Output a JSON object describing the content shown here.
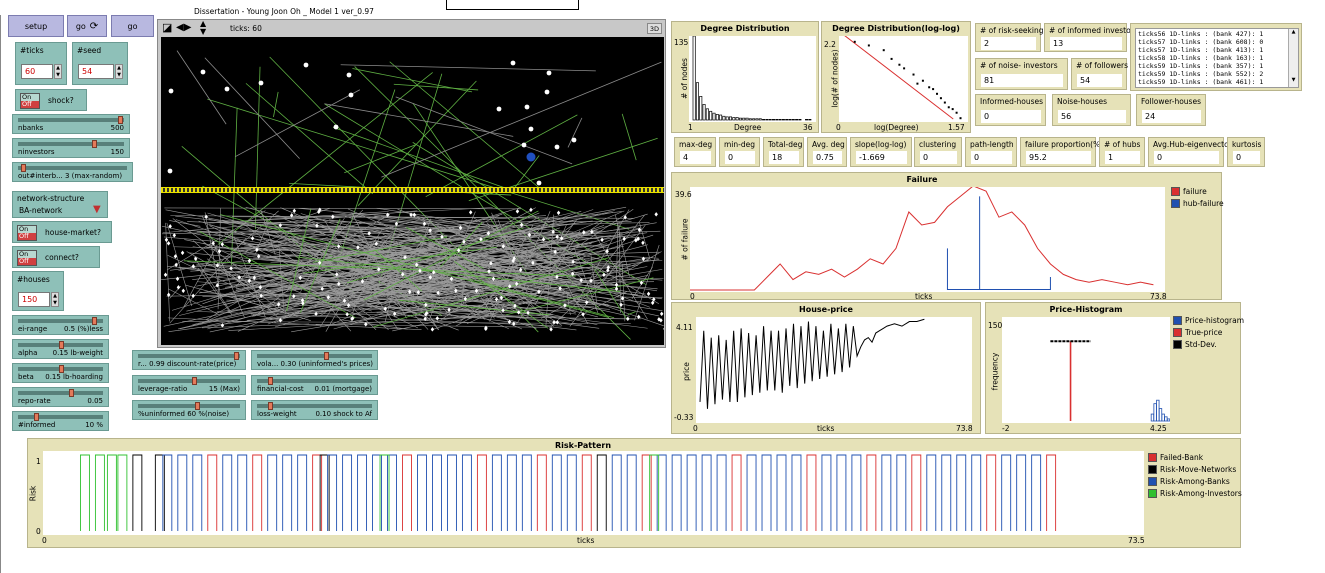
{
  "window_title": "Dissertation - Young Joon Oh _  Model 1 ver_0.97",
  "buttons": {
    "setup": "setup",
    "go_once": "go",
    "go_forever": "go"
  },
  "inputs": {
    "ticks": {
      "label": "#ticks",
      "value": "60"
    },
    "seed": {
      "label": "#seed",
      "value": "54"
    },
    "houses": {
      "label": "#houses",
      "value": "150"
    }
  },
  "switches": {
    "shock": {
      "label": "shock?",
      "on": "On",
      "off": "Off"
    },
    "house_market": {
      "label": "house-market?",
      "on": "On",
      "off": "Off"
    },
    "connect": {
      "label": "connect?",
      "on": "On",
      "off": "Off"
    }
  },
  "chooser": {
    "label": "network-structure",
    "value": "BA-network"
  },
  "sliders": [
    {
      "id": "nbanks",
      "name": "nbanks",
      "value": "500",
      "fraction": 0.97
    },
    {
      "id": "ninvestors",
      "name": "ninvestors",
      "value": "150",
      "fraction": 0.72
    },
    {
      "id": "outinterb",
      "name": "out#interb... 3 (max-random)",
      "value": "",
      "fraction": 0.03
    },
    {
      "id": "ei_range",
      "name": "ei-range",
      "value": "0.5 (%)less",
      "fraction": 0.9
    },
    {
      "id": "alpha",
      "name": "alpha",
      "value": "0.15 lb-weight",
      "fraction": 0.5
    },
    {
      "id": "beta",
      "name": "beta",
      "value": "0.15 lb-hoarding",
      "fraction": 0.5
    },
    {
      "id": "repo_rate",
      "name": "repo-rate",
      "value": "0.05",
      "fraction": 0.62
    },
    {
      "id": "informed",
      "name": "#informed",
      "value": "10 %",
      "fraction": 0.2
    },
    {
      "id": "discount",
      "name": "r... 0.99 discount-rate(price)",
      "value": "",
      "fraction": 0.97
    },
    {
      "id": "volatility",
      "name": "vola... 0.30 (uninformed's prices)",
      "value": "",
      "fraction": 0.6
    },
    {
      "id": "leverage",
      "name": "leverage-ratio",
      "value": "15 (Max)",
      "fraction": 0.55
    },
    {
      "id": "fincost",
      "name": "financial-cost",
      "value": "0.01 (mortgage)",
      "fraction": 0.1
    },
    {
      "id": "uninformed",
      "name": "%uninformed 60 %(noise)",
      "value": "",
      "fraction": 0.58
    },
    {
      "id": "lossweight",
      "name": "loss-weight",
      "value": "0.10 shock to Af",
      "fraction": 0.1
    }
  ],
  "view": {
    "ticks_label": "ticks: 60",
    "btn_3d": "3D"
  },
  "monitors": {
    "risk_seeking": {
      "label": "# of risk-seeking",
      "value": "2"
    },
    "informed_investors": {
      "label": "# of informed investo",
      "value": "13"
    },
    "noise_investors": {
      "label": "# of noise- investors",
      "value": "81"
    },
    "followers": {
      "label": "# of followers",
      "value": "54"
    },
    "informed_houses": {
      "label": "Informed-houses",
      "value": "0"
    },
    "noise_houses": {
      "label": "Noise-houses",
      "value": "56"
    },
    "follower_houses": {
      "label": "Follower-houses",
      "value": "24"
    },
    "max_deg": {
      "label": "max-deg",
      "value": "4"
    },
    "min_deg": {
      "label": "min-deg",
      "value": "0"
    },
    "total_deg": {
      "label": "Total-deg",
      "value": "18"
    },
    "avg_deg": {
      "label": "Avg. deg",
      "value": "0.75"
    },
    "slope": {
      "label": "slope(log-log)",
      "value": "-1.669"
    },
    "clustering": {
      "label": "clustering",
      "value": "0"
    },
    "path_length": {
      "label": "path-length",
      "value": "0"
    },
    "failure_prop": {
      "label": "failure proportion(%",
      "value": "95.2"
    },
    "hubs": {
      "label": "# of hubs",
      "value": "1"
    },
    "hub_eigen": {
      "label": "Avg.Hub-eigenvector",
      "value": "0"
    },
    "kurtosis": {
      "label": "kurtosis",
      "value": "0"
    }
  },
  "output_lines": [
    "ticks56 1D-links : (bank 427): 1",
    "ticks57 1D-links : (bank 608): 0",
    "ticks57 1D-links : (bank 413): 1",
    "ticks58 1D-links : (bank 163): 1",
    "ticks59 1D-links : (bank 357): 1",
    "ticks59 1D-links : (bank 552): 2",
    "ticks59 1D-links : (bank 461): 1"
  ],
  "colors": {
    "red": "#d93030",
    "blue": "#2050b0",
    "black": "#000000",
    "green": "#30c030",
    "gray": "#999999"
  },
  "chart_data": [
    {
      "id": "degree",
      "type": "bar",
      "title": "Degree Distribution",
      "xlabel": "Degree",
      "ylabel": "# of nodes",
      "xlim": [
        1,
        36
      ],
      "ylim": [
        0,
        135
      ],
      "x_ticks": [
        "1",
        "36"
      ],
      "y_ticks": [
        "135"
      ],
      "categories": [
        1,
        2,
        3,
        4,
        5,
        6,
        7,
        8,
        9,
        10,
        11,
        12,
        13,
        14,
        15,
        16,
        17,
        18,
        19,
        20,
        21,
        22,
        23,
        24,
        25,
        26,
        27,
        28,
        29,
        30,
        31,
        32,
        33,
        34,
        35,
        36
      ],
      "values": [
        135,
        60,
        38,
        25,
        18,
        14,
        11,
        9,
        8,
        6,
        5,
        5,
        4,
        4,
        3,
        3,
        3,
        2,
        2,
        2,
        2,
        1,
        1,
        1,
        1,
        1,
        1,
        1,
        1,
        1,
        1,
        1,
        1,
        0,
        1,
        1
      ]
    },
    {
      "id": "loglog",
      "type": "scatter",
      "title": "Degree Distribution(log-log)",
      "xlabel": "log(Degree)",
      "ylabel": "log(# of nodes)",
      "xlim": [
        0,
        1.57
      ],
      "ylim": [
        0,
        2.2
      ],
      "x_ticks": [
        "0",
        "1.57"
      ],
      "y_ticks": [
        "2.2"
      ],
      "points": [
        [
          0.15,
          2.15
        ],
        [
          0.33,
          2.05
        ],
        [
          0.52,
          1.92
        ],
        [
          0.62,
          1.68
        ],
        [
          0.72,
          1.52
        ],
        [
          0.78,
          1.42
        ],
        [
          0.9,
          1.25
        ],
        [
          0.95,
          1.0
        ],
        [
          1.02,
          1.08
        ],
        [
          1.1,
          0.9
        ],
        [
          1.15,
          0.85
        ],
        [
          1.2,
          0.72
        ],
        [
          1.25,
          0.6
        ],
        [
          1.3,
          0.48
        ],
        [
          1.35,
          0.35
        ],
        [
          1.4,
          0.3
        ],
        [
          1.45,
          0.2
        ],
        [
          1.5,
          0.05
        ]
      ],
      "fit_line": [
        [
          0.0,
          2.35
        ],
        [
          1.42,
          0.0
        ]
      ]
    },
    {
      "id": "failure",
      "type": "line",
      "title": "Failure",
      "xlabel": "ticks",
      "ylabel": "# of failure",
      "xlim": [
        0,
        73.8
      ],
      "ylim": [
        0,
        39.6
      ],
      "x_ticks": [
        "0",
        "73.8"
      ],
      "y_ticks": [
        "39.6"
      ],
      "series": [
        {
          "name": "failure",
          "x": [
            0,
            4,
            8,
            10,
            12,
            14,
            16,
            18,
            20,
            22,
            24,
            26,
            28,
            30,
            32,
            34,
            36,
            38,
            40,
            42,
            44,
            46,
            48,
            50,
            52,
            54,
            56,
            58,
            60,
            62,
            64,
            66,
            68,
            70,
            72
          ],
          "values": [
            0,
            0,
            0,
            0,
            5,
            10,
            4,
            7,
            6,
            8,
            5,
            8,
            12,
            10,
            16,
            30,
            25,
            26,
            32,
            36,
            40,
            38,
            28,
            30,
            25,
            16,
            10,
            6,
            4,
            3,
            4,
            3,
            2,
            3,
            2
          ]
        },
        {
          "name": "hub-failure",
          "x": [
            40,
            45,
            56
          ],
          "values": [
            16,
            36,
            5
          ]
        }
      ]
    },
    {
      "id": "house_price",
      "type": "line",
      "title": "House-price",
      "xlabel": "ticks",
      "ylabel": "price",
      "xlim": [
        0,
        73.8
      ],
      "ylim": [
        -0.33,
        4.11
      ],
      "x_ticks": [
        "0",
        "73.8"
      ],
      "y_ticks": [
        "4.11",
        "-0.33"
      ],
      "series": [
        {
          "name": "price",
          "x": [
            0,
            1,
            2,
            3,
            4,
            5,
            6,
            7,
            8,
            9,
            10,
            11,
            12,
            13,
            14,
            15,
            16,
            17,
            18,
            19,
            20,
            21,
            22,
            23,
            24,
            25,
            26,
            27,
            28,
            29,
            30,
            31,
            32,
            33,
            34,
            35,
            36,
            37,
            38,
            39,
            40,
            41,
            42,
            43,
            44,
            45,
            46,
            47,
            48,
            49,
            50,
            52,
            54,
            56,
            58,
            60
          ],
          "values": [
            0.5,
            3.6,
            0.2,
            3.3,
            0.4,
            3.4,
            0.6,
            3.2,
            0.5,
            3.6,
            0.5,
            3.7,
            0.7,
            3.5,
            0.8,
            3.4,
            0.9,
            3.8,
            1.0,
            3.6,
            1.0,
            3.6,
            0.9,
            3.7,
            1.2,
            3.9,
            1.1,
            3.8,
            1.3,
            4.0,
            1.4,
            3.8,
            1.5,
            3.6,
            1.6,
            3.9,
            1.7,
            3.7,
            1.8,
            3.9,
            2.0,
            3.8,
            2.5,
            2.9,
            3.2,
            3.3,
            3.1,
            3.5,
            3.6,
            3.7,
            3.8,
            3.9,
            3.8,
            4.0,
            4.0,
            4.1
          ]
        }
      ]
    },
    {
      "id": "price_hist",
      "type": "bar",
      "title": "Price-Histogram",
      "xlabel": "",
      "ylabel": "frequency",
      "xlim": [
        -2,
        4.25
      ],
      "ylim": [
        0,
        150
      ],
      "x_ticks": [
        "-2",
        "4.25"
      ],
      "y_ticks": [
        "150"
      ],
      "series": [
        {
          "name": "Price-histogram",
          "bins": [
            3.55,
            3.65,
            3.75,
            3.85,
            3.95,
            4.05,
            4.15
          ],
          "values": [
            10,
            25,
            30,
            18,
            10,
            6,
            3
          ]
        },
        {
          "name": "True-price",
          "at": 0.55,
          "value": 115
        },
        {
          "name": "Std-Dev.",
          "from": -0.2,
          "to": 1.3,
          "value": 115
        }
      ]
    },
    {
      "id": "risk_pattern",
      "type": "line",
      "title": "Risk-Pattern",
      "xlabel": "ticks",
      "ylabel": "Risk",
      "xlim": [
        0,
        73.5
      ],
      "ylim": [
        0,
        1
      ],
      "x_ticks": [
        "0",
        "73.5"
      ],
      "y_ticks": [
        "1",
        "0"
      ],
      "series": [
        {
          "name": "Failed-Bank",
          "pulses": [
            11,
            14,
            18,
            24,
            29,
            33,
            36,
            40,
            46,
            51,
            55,
            58,
            63,
            67
          ]
        },
        {
          "name": "Risk-Move-Networks",
          "pulses": [
            6,
            7.5,
            18.5,
            37
          ]
        },
        {
          "name": "Risk-Among-Banks",
          "pulses": [
            8,
            9,
            10,
            12,
            13,
            15,
            16,
            17,
            19,
            20,
            21,
            22,
            23,
            25,
            26,
            27,
            28,
            30,
            31,
            32,
            34,
            35,
            38,
            39,
            41,
            42,
            43,
            44,
            45,
            47,
            48,
            49,
            50,
            52,
            53,
            54,
            56,
            57,
            59,
            60,
            61,
            62,
            64,
            65,
            66
          ]
        },
        {
          "name": "Risk-Among-Investors",
          "pulses": [
            2.5,
            3.5,
            4.3,
            5.0,
            22.5,
            40.5
          ]
        }
      ]
    }
  ]
}
